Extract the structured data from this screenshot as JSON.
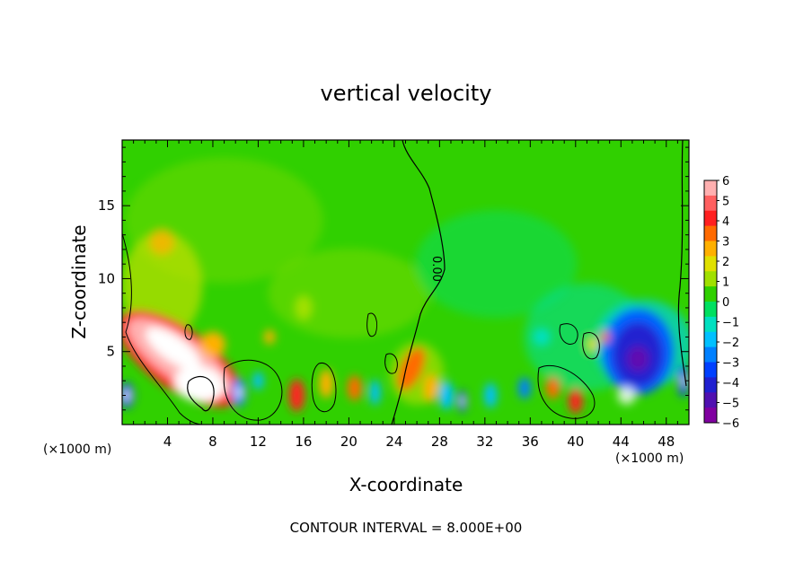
{
  "chart_data": {
    "type": "heatmap",
    "title": "vertical velocity",
    "xlabel": "X-coordinate",
    "ylabel": "Z-coordinate",
    "x_unit_note": "(×1000 m)",
    "x_unit_note_bottom": "(×1000 m)",
    "footer": "CONTOUR INTERVAL = 8.000E+00",
    "xlim": [
      0,
      50
    ],
    "ylim": [
      0,
      19.5
    ],
    "x_ticks": [
      4,
      8,
      12,
      16,
      20,
      24,
      28,
      32,
      36,
      40,
      44,
      48
    ],
    "y_ticks": [
      5,
      10,
      15
    ],
    "colorbar": {
      "range": [
        -6,
        6
      ],
      "tick_labels": [
        "6",
        "5",
        "4",
        "3",
        "2",
        "1",
        "0",
        "−1",
        "−2",
        "−3",
        "−4",
        "−5",
        "−6"
      ],
      "colors": [
        "#ffb0b0",
        "#ff6060",
        "#ff2020",
        "#ff6a00",
        "#ffb000",
        "#e0e000",
        "#a0e000",
        "#30d000",
        "#00e060",
        "#00e0c0",
        "#00c0ff",
        "#0080ff",
        "#0040ff",
        "#2020d0",
        "#5010b0",
        "#8000a0"
      ]
    },
    "contour_label": "0.00",
    "features": [
      {
        "kind": "updraft",
        "x": 3.5,
        "z": 5.5,
        "value": 7
      },
      {
        "kind": "updraft",
        "x": 6.5,
        "z": 3,
        "value": 7
      },
      {
        "kind": "updraft",
        "x": 15.5,
        "z": 2,
        "value": 4
      },
      {
        "kind": "updraft",
        "x": 25.5,
        "z": 3.5,
        "value": 3.5
      },
      {
        "kind": "updraft",
        "x": 40,
        "z": 1.5,
        "value": 4
      },
      {
        "kind": "downdraft",
        "x": 45.5,
        "z": 5,
        "value": -5.5
      },
      {
        "kind": "downdraft",
        "x": 0.5,
        "z": 2,
        "value": -5
      },
      {
        "kind": "downdraft",
        "x": 10,
        "z": 2,
        "value": -3.5
      },
      {
        "kind": "downdraft",
        "x": 30,
        "z": 1.5,
        "value": -3
      },
      {
        "kind": "downdraft",
        "x": 49.5,
        "z": 3,
        "value": -4
      }
    ]
  }
}
